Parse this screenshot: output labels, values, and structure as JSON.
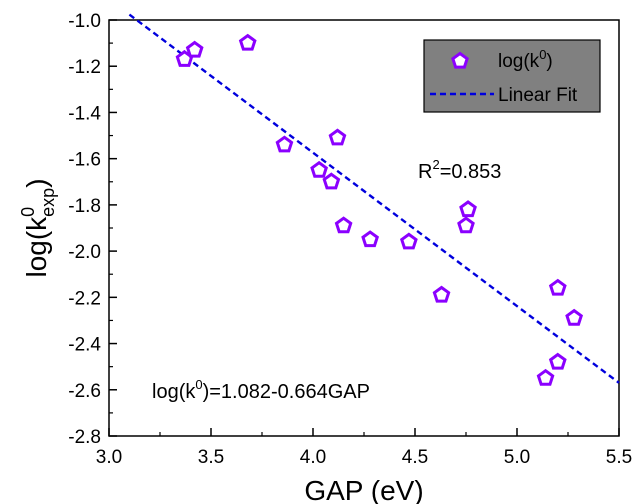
{
  "chart_data": {
    "type": "scatter",
    "xlabel": "GAP (eV)",
    "ylabel_main": "log(k",
    "ylabel_sup": "0",
    "ylabel_sub": "exp",
    "ylabel_close": ")",
    "xlim": [
      3.0,
      5.5
    ],
    "ylim": [
      -2.8,
      -1.0
    ],
    "xticks": [
      3.0,
      3.5,
      4.0,
      4.5,
      5.0,
      5.5
    ],
    "xtick_labels": [
      "3.0",
      "3.5",
      "4.0",
      "4.5",
      "5.0",
      "5.5"
    ],
    "yticks": [
      -1.0,
      -1.2,
      -1.4,
      -1.6,
      -1.8,
      -2.0,
      -2.2,
      -2.4,
      -2.6,
      -2.8
    ],
    "ytick_labels": [
      "-1.0",
      "-1.2",
      "-1.4",
      "-1.6",
      "-1.8",
      "-2.0",
      "-2.2",
      "-2.4",
      "-2.6",
      "-2.8"
    ],
    "grid": false,
    "legend_position": "top-right",
    "series": [
      {
        "name": "log(k0)",
        "kind": "scatter",
        "marker": "pentagon",
        "color": "#8b00ff",
        "points": [
          {
            "x": 3.37,
            "y": -1.17
          },
          {
            "x": 3.42,
            "y": -1.13
          },
          {
            "x": 3.68,
            "y": -1.1
          },
          {
            "x": 3.86,
            "y": -1.54
          },
          {
            "x": 4.03,
            "y": -1.65
          },
          {
            "x": 4.09,
            "y": -1.7
          },
          {
            "x": 4.12,
            "y": -1.51
          },
          {
            "x": 4.15,
            "y": -1.89
          },
          {
            "x": 4.28,
            "y": -1.95
          },
          {
            "x": 4.47,
            "y": -1.96
          },
          {
            "x": 4.63,
            "y": -2.19
          },
          {
            "x": 4.75,
            "y": -1.89
          },
          {
            "x": 4.76,
            "y": -1.82
          },
          {
            "x": 5.14,
            "y": -2.55
          },
          {
            "x": 5.2,
            "y": -2.48
          },
          {
            "x": 5.2,
            "y": -2.16
          },
          {
            "x": 5.28,
            "y": -2.29
          }
        ]
      },
      {
        "name": "Linear Fit",
        "kind": "line",
        "style": "dashed",
        "color": "#0000dd",
        "intercept": 1.082,
        "slope": -0.664,
        "x_range": [
          3.1,
          5.5
        ]
      }
    ],
    "legend": {
      "scatter_label_main": "log(k",
      "scatter_label_sup": "0",
      "scatter_label_close": ")",
      "fit_label": "Linear Fit",
      "background": "#808080"
    },
    "annotations": {
      "r2_main": "R",
      "r2_sup": "2",
      "r2_rest": "=0.853",
      "equation_main": "log(k",
      "equation_sup": "0",
      "equation_rest": ")=1.082-0.664GAP"
    }
  }
}
